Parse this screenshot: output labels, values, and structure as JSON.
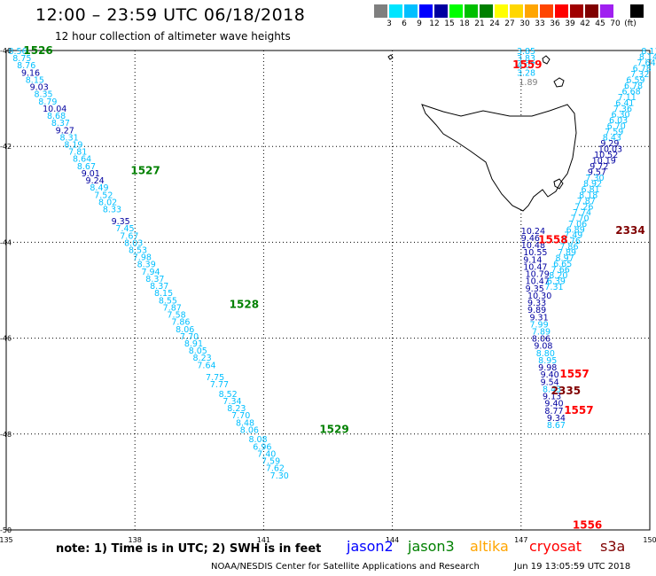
{
  "header": {
    "title": "12:00 – 23:59 UTC 06/18/2018",
    "subtitle": "12 hour collection of altimeter wave heights"
  },
  "scale": {
    "colors": [
      "#7f7f7f",
      "#00e5ff",
      "#00bfff",
      "#0000ff",
      "#0000a0",
      "#00ff00",
      "#00c000",
      "#008000",
      "#ffff00",
      "#ffd700",
      "#ffa500",
      "#ff4500",
      "#ff0000",
      "#a00000",
      "#800000",
      "#a020f0",
      "#ffffff",
      "#000000"
    ],
    "labels": [
      "3",
      "6",
      "9",
      "12",
      "15",
      "18",
      "21",
      "24",
      "27",
      "30",
      "33",
      "36",
      "39",
      "42",
      "45",
      "70",
      "(ft)"
    ]
  },
  "axes": {
    "lon_ticks": [
      "135",
      "138",
      "141",
      "144",
      "147",
      "150"
    ],
    "lat_ticks": [
      "-40",
      "-42",
      "-44",
      "-46",
      "-48",
      "-50"
    ]
  },
  "legend": {
    "jason2": "jason2",
    "jason3": "jason3",
    "altika": "altika",
    "cryosat": "cryosat",
    "s3a": "s3a"
  },
  "colors": {
    "jason2": "#0000ff",
    "jason3": "#008000",
    "altika": "#ffa500",
    "cryosat": "#ff0000",
    "s3a": "#800000",
    "low_wave": "#00bfff",
    "mid_wave": "#0000a0",
    "gray_wave": "#7f7f7f"
  },
  "note": "note: 1) Time is in UTC; 2) SWH is in feet",
  "credit": "NOAA/NESDIS Center for Satellite Applications and Research",
  "stamp": "Jun 19 13:05:59 UTC 2018",
  "pass_labels": [
    {
      "text": "1526",
      "color": "green",
      "lon": 135.4,
      "lat": -40.0
    },
    {
      "text": "1527",
      "color": "green",
      "lon": 137.9,
      "lat": -42.5
    },
    {
      "text": "1528",
      "color": "green",
      "lon": 140.2,
      "lat": -45.3
    },
    {
      "text": "1529",
      "color": "green",
      "lon": 142.3,
      "lat": -47.9
    },
    {
      "text": "1559",
      "color": "red",
      "lon": 146.8,
      "lat": -40.3
    },
    {
      "text": "1558",
      "color": "red",
      "lon": 147.4,
      "lat": -43.95
    },
    {
      "text": "2334",
      "color": "maroon",
      "lon": 149.2,
      "lat": -43.75
    },
    {
      "text": "1557",
      "color": "red",
      "lon": 147.9,
      "lat": -46.75
    },
    {
      "text": "2335",
      "color": "maroon",
      "lon": 147.7,
      "lat": -47.1
    },
    {
      "text": "1557",
      "color": "red",
      "lon": 148.0,
      "lat": -47.5
    },
    {
      "text": "1556",
      "color": "red",
      "lon": 148.2,
      "lat": -49.9
    }
  ],
  "tracks": [
    {
      "name": "1526-1529 descending",
      "values": [
        {
          "v": "8.56",
          "lon": 135.05,
          "lat": -40.0,
          "c": "low"
        },
        {
          "v": "8.75",
          "lon": 135.15,
          "lat": -40.15,
          "c": "low"
        },
        {
          "v": "8.76",
          "lon": 135.25,
          "lat": -40.3,
          "c": "low"
        },
        {
          "v": "9.16",
          "lon": 135.35,
          "lat": -40.45,
          "c": "mid"
        },
        {
          "v": "8.15",
          "lon": 135.45,
          "lat": -40.6,
          "c": "low"
        },
        {
          "v": "9.03",
          "lon": 135.55,
          "lat": -40.75,
          "c": "mid"
        },
        {
          "v": "8.35",
          "lon": 135.65,
          "lat": -40.9,
          "c": "low"
        },
        {
          "v": "8.79",
          "lon": 135.75,
          "lat": -41.05,
          "c": "low"
        },
        {
          "v": "10.04",
          "lon": 135.85,
          "lat": -41.2,
          "c": "mid"
        },
        {
          "v": "8.68",
          "lon": 135.95,
          "lat": -41.35,
          "c": "low"
        },
        {
          "v": "8.37",
          "lon": 136.05,
          "lat": -41.5,
          "c": "low"
        },
        {
          "v": "9.27",
          "lon": 136.15,
          "lat": -41.65,
          "c": "mid"
        },
        {
          "v": "8.31",
          "lon": 136.25,
          "lat": -41.8,
          "c": "low"
        },
        {
          "v": "8.19",
          "lon": 136.35,
          "lat": -41.95,
          "c": "low"
        },
        {
          "v": "7.81",
          "lon": 136.45,
          "lat": -42.1,
          "c": "low"
        },
        {
          "v": "8.64",
          "lon": 136.55,
          "lat": -42.25,
          "c": "low"
        },
        {
          "v": "8.67",
          "lon": 136.65,
          "lat": -42.4,
          "c": "low"
        },
        {
          "v": "9.01",
          "lon": 136.75,
          "lat": -42.55,
          "c": "mid"
        },
        {
          "v": "9.24",
          "lon": 136.85,
          "lat": -42.7,
          "c": "mid"
        },
        {
          "v": "8.49",
          "lon": 136.95,
          "lat": -42.85,
          "c": "low"
        },
        {
          "v": "7.52",
          "lon": 137.05,
          "lat": -43.0,
          "c": "low"
        },
        {
          "v": "8.02",
          "lon": 137.15,
          "lat": -43.15,
          "c": "low"
        },
        {
          "v": "8.33",
          "lon": 137.25,
          "lat": -43.3,
          "c": "low"
        },
        {
          "v": "9.35",
          "lon": 137.45,
          "lat": -43.55,
          "c": "mid"
        },
        {
          "v": "7.45",
          "lon": 137.55,
          "lat": -43.7,
          "c": "low"
        },
        {
          "v": "7.67",
          "lon": 137.65,
          "lat": -43.85,
          "c": "low"
        },
        {
          "v": "8.03",
          "lon": 137.75,
          "lat": -44.0,
          "c": "low"
        },
        {
          "v": "8.53",
          "lon": 137.85,
          "lat": -44.15,
          "c": "low"
        },
        {
          "v": "7.98",
          "lon": 137.95,
          "lat": -44.3,
          "c": "low"
        },
        {
          "v": "8.39",
          "lon": 138.05,
          "lat": -44.45,
          "c": "low"
        },
        {
          "v": "7.94",
          "lon": 138.15,
          "lat": -44.6,
          "c": "low"
        },
        {
          "v": "8.37",
          "lon": 138.25,
          "lat": -44.75,
          "c": "low"
        },
        {
          "v": "8.37",
          "lon": 138.35,
          "lat": -44.9,
          "c": "low"
        },
        {
          "v": "8.15",
          "lon": 138.45,
          "lat": -45.05,
          "c": "low"
        },
        {
          "v": "8.55",
          "lon": 138.55,
          "lat": -45.2,
          "c": "low"
        },
        {
          "v": "7.87",
          "lon": 138.65,
          "lat": -45.35,
          "c": "low"
        },
        {
          "v": "7.58",
          "lon": 138.75,
          "lat": -45.5,
          "c": "low"
        },
        {
          "v": "7.86",
          "lon": 138.85,
          "lat": -45.65,
          "c": "low"
        },
        {
          "v": "8.06",
          "lon": 138.95,
          "lat": -45.8,
          "c": "low"
        },
        {
          "v": "7.70",
          "lon": 139.05,
          "lat": -45.95,
          "c": "low"
        },
        {
          "v": "8.91",
          "lon": 139.15,
          "lat": -46.1,
          "c": "low"
        },
        {
          "v": "8.05",
          "lon": 139.25,
          "lat": -46.25,
          "c": "low"
        },
        {
          "v": "8.23",
          "lon": 139.35,
          "lat": -46.4,
          "c": "low"
        },
        {
          "v": "7.64",
          "lon": 139.45,
          "lat": -46.55,
          "c": "low"
        },
        {
          "v": "7.75",
          "lon": 139.65,
          "lat": -46.8,
          "c": "low"
        },
        {
          "v": "7.77",
          "lon": 139.75,
          "lat": -46.95,
          "c": "low"
        },
        {
          "v": "8.52",
          "lon": 139.95,
          "lat": -47.15,
          "c": "low"
        },
        {
          "v": "7.34",
          "lon": 140.05,
          "lat": -47.3,
          "c": "low"
        },
        {
          "v": "8.23",
          "lon": 140.15,
          "lat": -47.45,
          "c": "low"
        },
        {
          "v": "7.70",
          "lon": 140.25,
          "lat": -47.6,
          "c": "low"
        },
        {
          "v": "8.48",
          "lon": 140.35,
          "lat": -47.75,
          "c": "low"
        },
        {
          "v": "8.06",
          "lon": 140.45,
          "lat": -47.9,
          "c": "low"
        },
        {
          "v": "8.08",
          "lon": 140.65,
          "lat": -48.1,
          "c": "low"
        },
        {
          "v": "6.96",
          "lon": 140.75,
          "lat": -48.25,
          "c": "low"
        },
        {
          "v": "7.40",
          "lon": 140.85,
          "lat": -48.4,
          "c": "low"
        },
        {
          "v": "7.59",
          "lon": 140.95,
          "lat": -48.55,
          "c": "low"
        },
        {
          "v": "7.62",
          "lon": 141.05,
          "lat": -48.7,
          "c": "low"
        },
        {
          "v": "7.30",
          "lon": 141.15,
          "lat": -48.85,
          "c": "low"
        }
      ]
    },
    {
      "name": "1559-1558 descending",
      "values": [
        {
          "v": "3.85",
          "lon": 146.9,
          "lat": -40.0,
          "c": "low"
        },
        {
          "v": "3.83",
          "lon": 146.9,
          "lat": -40.15,
          "c": "low"
        },
        {
          "v": "4.07",
          "lon": 146.9,
          "lat": -40.3,
          "c": "low"
        },
        {
          "v": "3.28",
          "lon": 146.9,
          "lat": -40.45,
          "c": "low"
        },
        {
          "v": "1.89",
          "lon": 146.95,
          "lat": -40.65,
          "c": "gray"
        },
        {
          "v": "10.24",
          "lon": 147.0,
          "lat": -43.75,
          "c": "mid"
        },
        {
          "v": "9.46",
          "lon": 147.0,
          "lat": -43.9,
          "c": "mid"
        },
        {
          "v": "10.48",
          "lon": 147.0,
          "lat": -44.05,
          "c": "mid"
        },
        {
          "v": "10.55",
          "lon": 147.05,
          "lat": -44.2,
          "c": "mid"
        },
        {
          "v": "9.14",
          "lon": 147.05,
          "lat": -44.35,
          "c": "mid"
        },
        {
          "v": "10.47",
          "lon": 147.05,
          "lat": -44.5,
          "c": "mid"
        },
        {
          "v": "10.79",
          "lon": 147.1,
          "lat": -44.65,
          "c": "mid"
        },
        {
          "v": "10.47",
          "lon": 147.1,
          "lat": -44.8,
          "c": "mid"
        },
        {
          "v": "9.35",
          "lon": 147.1,
          "lat": -44.95,
          "c": "mid"
        },
        {
          "v": "10.30",
          "lon": 147.15,
          "lat": -45.1,
          "c": "mid"
        },
        {
          "v": "9.33",
          "lon": 147.15,
          "lat": -45.25,
          "c": "mid"
        },
        {
          "v": "9.89",
          "lon": 147.15,
          "lat": -45.4,
          "c": "mid"
        },
        {
          "v": "9.31",
          "lon": 147.2,
          "lat": -45.55,
          "c": "mid"
        },
        {
          "v": "7.99",
          "lon": 147.2,
          "lat": -45.7,
          "c": "low"
        },
        {
          "v": "7.89",
          "lon": 147.25,
          "lat": -45.85,
          "c": "low"
        },
        {
          "v": "8.06",
          "lon": 147.25,
          "lat": -46.0,
          "c": "mid"
        },
        {
          "v": "9.08",
          "lon": 147.3,
          "lat": -46.15,
          "c": "mid"
        },
        {
          "v": "8.80",
          "lon": 147.35,
          "lat": -46.3,
          "c": "low"
        },
        {
          "v": "8.95",
          "lon": 147.4,
          "lat": -46.45,
          "c": "low"
        },
        {
          "v": "9.98",
          "lon": 147.4,
          "lat": -46.6,
          "c": "mid"
        },
        {
          "v": "9.40",
          "lon": 147.45,
          "lat": -46.75,
          "c": "mid"
        },
        {
          "v": "9.54",
          "lon": 147.45,
          "lat": -46.9,
          "c": "mid"
        },
        {
          "v": "8.43",
          "lon": 147.5,
          "lat": -47.05,
          "c": "low"
        },
        {
          "v": "9.13",
          "lon": 147.5,
          "lat": -47.2,
          "c": "mid"
        },
        {
          "v": "9.40",
          "lon": 147.55,
          "lat": -47.35,
          "c": "mid"
        },
        {
          "v": "8.77",
          "lon": 147.55,
          "lat": -47.5,
          "c": "mid"
        },
        {
          "v": "9.34",
          "lon": 147.6,
          "lat": -47.65,
          "c": "mid"
        },
        {
          "v": "8.67",
          "lon": 147.6,
          "lat": -47.8,
          "c": "low"
        }
      ]
    },
    {
      "name": "2334 ascending",
      "values": [
        {
          "v": "8.11",
          "lon": 149.8,
          "lat": -40.0,
          "c": "low"
        },
        {
          "v": "8.14",
          "lon": 149.75,
          "lat": -40.12,
          "c": "low"
        },
        {
          "v": "7.64",
          "lon": 149.7,
          "lat": -40.24,
          "c": "low"
        },
        {
          "v": "6.78",
          "lon": 149.6,
          "lat": -40.36,
          "c": "low"
        },
        {
          "v": "7.32",
          "lon": 149.55,
          "lat": -40.48,
          "c": "low"
        },
        {
          "v": "6.59",
          "lon": 149.45,
          "lat": -40.6,
          "c": "low"
        },
        {
          "v": "6.78",
          "lon": 149.4,
          "lat": -40.72,
          "c": "low"
        },
        {
          "v": "6.68",
          "lon": 149.35,
          "lat": -40.84,
          "c": "low"
        },
        {
          "v": "7.11",
          "lon": 149.25,
          "lat": -40.96,
          "c": "low"
        },
        {
          "v": "6.41",
          "lon": 149.2,
          "lat": -41.08,
          "c": "low"
        },
        {
          "v": "7.36",
          "lon": 149.15,
          "lat": -41.2,
          "c": "low"
        },
        {
          "v": "6.30",
          "lon": 149.1,
          "lat": -41.32,
          "c": "low"
        },
        {
          "v": "6.03",
          "lon": 149.05,
          "lat": -41.44,
          "c": "low"
        },
        {
          "v": "6.70",
          "lon": 149.0,
          "lat": -41.56,
          "c": "low"
        },
        {
          "v": "7.59",
          "lon": 148.95,
          "lat": -41.68,
          "c": "low"
        },
        {
          "v": "8.43",
          "lon": 148.9,
          "lat": -41.8,
          "c": "low"
        },
        {
          "v": "9.29",
          "lon": 148.85,
          "lat": -41.92,
          "c": "mid"
        },
        {
          "v": "10.03",
          "lon": 148.8,
          "lat": -42.04,
          "c": "mid"
        },
        {
          "v": "10.52",
          "lon": 148.7,
          "lat": -42.16,
          "c": "mid"
        },
        {
          "v": "10.19",
          "lon": 148.65,
          "lat": -42.28,
          "c": "mid"
        },
        {
          "v": "9.72",
          "lon": 148.6,
          "lat": -42.4,
          "c": "mid"
        },
        {
          "v": "9.57",
          "lon": 148.55,
          "lat": -42.52,
          "c": "mid"
        },
        {
          "v": "7.30",
          "lon": 148.5,
          "lat": -42.64,
          "c": "low"
        },
        {
          "v": "8.92",
          "lon": 148.45,
          "lat": -42.76,
          "c": "low"
        },
        {
          "v": "6.81",
          "lon": 148.4,
          "lat": -42.88,
          "c": "low"
        },
        {
          "v": "8.18",
          "lon": 148.35,
          "lat": -43.0,
          "c": "low"
        },
        {
          "v": "7.87",
          "lon": 148.3,
          "lat": -43.12,
          "c": "low"
        },
        {
          "v": "7.26",
          "lon": 148.25,
          "lat": -43.24,
          "c": "low"
        },
        {
          "v": "7.74",
          "lon": 148.2,
          "lat": -43.36,
          "c": "low"
        },
        {
          "v": "7.70",
          "lon": 148.15,
          "lat": -43.48,
          "c": "low"
        },
        {
          "v": "7.06",
          "lon": 148.1,
          "lat": -43.6,
          "c": "low"
        },
        {
          "v": "6.89",
          "lon": 148.05,
          "lat": -43.72,
          "c": "low"
        },
        {
          "v": "7.49",
          "lon": 148.0,
          "lat": -43.84,
          "c": "low"
        },
        {
          "v": "7.76",
          "lon": 147.95,
          "lat": -43.96,
          "c": "low"
        },
        {
          "v": "7.86",
          "lon": 147.9,
          "lat": -44.08,
          "c": "low"
        },
        {
          "v": "7.89",
          "lon": 147.85,
          "lat": -44.2,
          "c": "low"
        },
        {
          "v": "8.97",
          "lon": 147.8,
          "lat": -44.32,
          "c": "low"
        },
        {
          "v": "6.65",
          "lon": 147.75,
          "lat": -44.44,
          "c": "low"
        },
        {
          "v": "7.66",
          "lon": 147.7,
          "lat": -44.56,
          "c": "low"
        },
        {
          "v": "8.20",
          "lon": 147.65,
          "lat": -44.68,
          "c": "low"
        },
        {
          "v": "6.39",
          "lon": 147.6,
          "lat": -44.8,
          "c": "low"
        },
        {
          "v": "7.31",
          "lon": 147.55,
          "lat": -44.92,
          "c": "low"
        }
      ]
    }
  ]
}
